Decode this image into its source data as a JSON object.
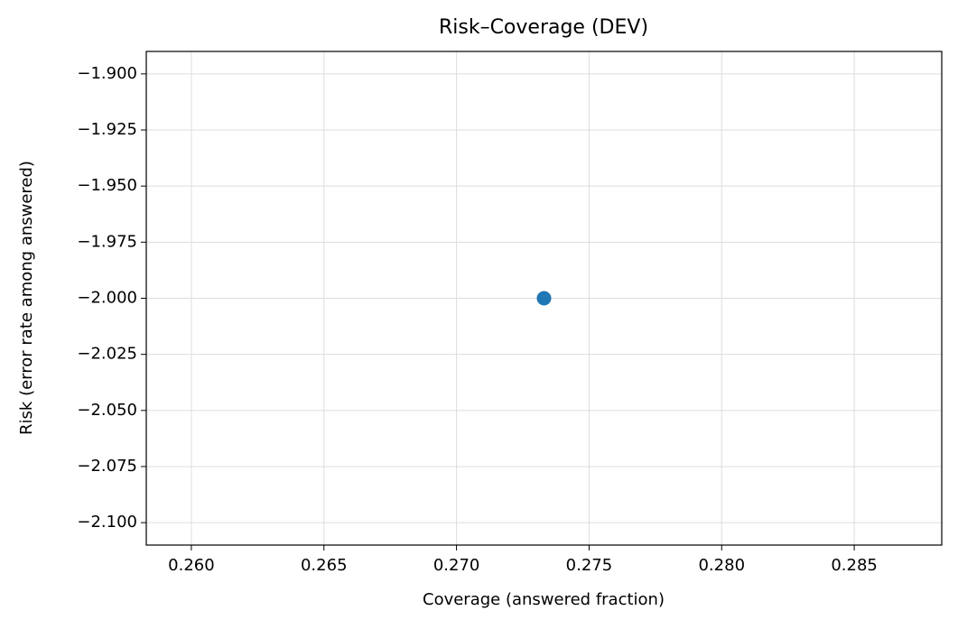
{
  "chart_data": {
    "type": "scatter",
    "title": "Risk–Coverage (DEV)",
    "x_label": "Coverage (answered fraction)",
    "y_label": "Risk (error rate among answered)",
    "series": [
      {
        "color": "#1f77b4",
        "x": [
          0.2733
        ],
        "values": [
          -2.0
        ]
      }
    ],
    "xlim": [
      0.2583,
      0.2883
    ],
    "xticks": [
      {
        "value": 0.26,
        "label": "0.260"
      },
      {
        "value": 0.265,
        "label": "0.265"
      },
      {
        "value": 0.27,
        "label": "0.270"
      },
      {
        "value": 0.275,
        "label": "0.275"
      },
      {
        "value": 0.28,
        "label": "0.280"
      },
      {
        "value": 0.285,
        "label": "0.285"
      }
    ],
    "ylim": [
      -2.11,
      -1.89
    ],
    "yticks": [
      {
        "value": -2.1,
        "label": "−2.100"
      },
      {
        "value": -2.075,
        "label": "−2.075"
      },
      {
        "value": -2.05,
        "label": "−2.050"
      },
      {
        "value": -2.025,
        "label": "−2.025"
      },
      {
        "value": -2.0,
        "label": "−2.000"
      },
      {
        "value": -1.975,
        "label": "−1.975"
      },
      {
        "value": -1.95,
        "label": "−1.950"
      },
      {
        "value": -1.925,
        "label": "−1.925"
      },
      {
        "value": -1.9,
        "label": "−1.900"
      }
    ],
    "grid": true
  }
}
